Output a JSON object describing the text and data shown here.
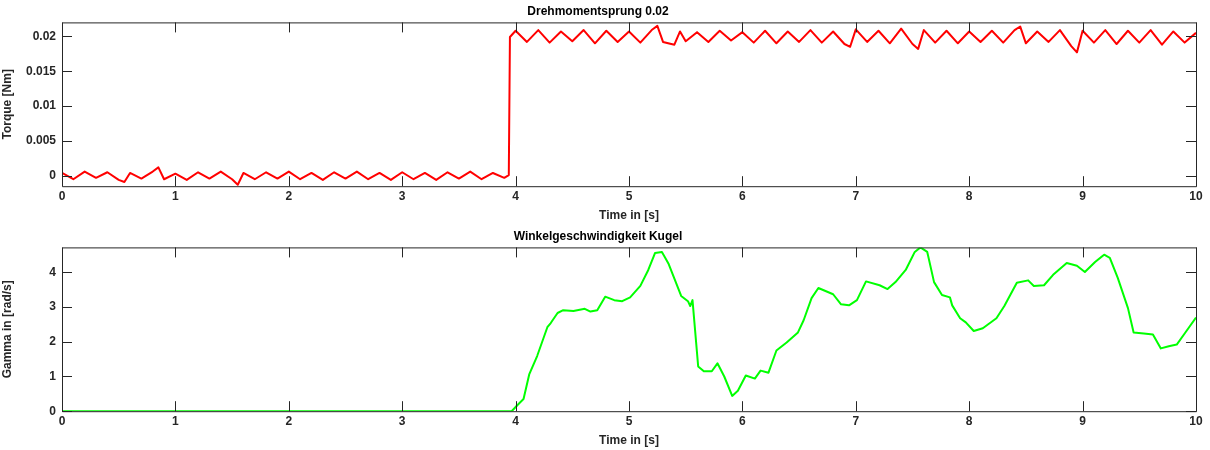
{
  "chart_data": [
    {
      "type": "line",
      "title": "Drehmomentsprung 0.02",
      "xlabel": "Time in [s]",
      "ylabel": "Torque [Nm]",
      "color": "#ff0000",
      "marker": "none",
      "grid": false,
      "x": [
        0,
        0.1,
        0.2,
        0.3,
        0.4,
        0.5,
        0.55,
        0.6,
        0.7,
        0.8,
        0.85,
        0.9,
        1,
        1.1,
        1.2,
        1.3,
        1.4,
        1.5,
        1.55,
        1.6,
        1.7,
        1.8,
        1.9,
        2,
        2.1,
        2.2,
        2.3,
        2.4,
        2.5,
        2.6,
        2.7,
        2.8,
        2.9,
        3,
        3.1,
        3.2,
        3.3,
        3.4,
        3.5,
        3.6,
        3.7,
        3.8,
        3.9,
        3.94,
        3.95,
        4,
        4.1,
        4.2,
        4.3,
        4.4,
        4.5,
        4.6,
        4.7,
        4.8,
        4.9,
        5,
        5.1,
        5.2,
        5.25,
        5.3,
        5.4,
        5.45,
        5.5,
        5.6,
        5.7,
        5.8,
        5.9,
        6,
        6.1,
        6.2,
        6.3,
        6.4,
        6.5,
        6.6,
        6.7,
        6.8,
        6.9,
        6.95,
        7,
        7.1,
        7.2,
        7.3,
        7.4,
        7.5,
        7.55,
        7.6,
        7.7,
        7.8,
        7.9,
        8,
        8.1,
        8.2,
        8.3,
        8.4,
        8.45,
        8.5,
        8.6,
        8.7,
        8.8,
        8.9,
        8.95,
        9,
        9.1,
        9.2,
        9.3,
        9.4,
        9.5,
        9.6,
        9.7,
        9.8,
        9.9,
        10
      ],
      "values": [
        0.0004,
        -0.0005,
        0.0006,
        -0.0003,
        0.0005,
        -0.0006,
        -0.0009,
        0.0004,
        -0.0004,
        0.0006,
        0.0012,
        -0.0005,
        0.0003,
        -0.0006,
        0.0005,
        -0.0004,
        0.0006,
        -0.0005,
        -0.0013,
        0.0004,
        -0.0005,
        0.0005,
        -0.0004,
        0.0006,
        -0.0005,
        0.0004,
        -0.0006,
        0.0005,
        -0.0004,
        0.0006,
        -0.0005,
        0.0004,
        -0.0006,
        0.0005,
        -0.0005,
        0.0004,
        -0.0006,
        0.0005,
        -0.0004,
        0.0006,
        -0.0005,
        0.0004,
        -0.0003,
        0.0001,
        0.0199,
        0.0208,
        0.0192,
        0.0209,
        0.0191,
        0.0207,
        0.0193,
        0.0209,
        0.019,
        0.0208,
        0.0192,
        0.0207,
        0.0191,
        0.0209,
        0.0215,
        0.0192,
        0.0188,
        0.0207,
        0.0193,
        0.0206,
        0.0192,
        0.0208,
        0.0194,
        0.0206,
        0.0191,
        0.0208,
        0.019,
        0.0207,
        0.0192,
        0.0209,
        0.0191,
        0.0207,
        0.0189,
        0.0185,
        0.021,
        0.0192,
        0.0208,
        0.019,
        0.0211,
        0.0189,
        0.0182,
        0.0209,
        0.0191,
        0.0208,
        0.019,
        0.0207,
        0.0192,
        0.0208,
        0.0191,
        0.0209,
        0.0214,
        0.019,
        0.0207,
        0.0192,
        0.0209,
        0.0186,
        0.0177,
        0.0208,
        0.0191,
        0.0209,
        0.0189,
        0.0208,
        0.0191,
        0.0209,
        0.0188,
        0.0207,
        0.0191,
        0.0205
      ],
      "xlim": [
        0,
        10
      ],
      "xticks": [
        0,
        1,
        2,
        3,
        4,
        5,
        6,
        7,
        8,
        9,
        10
      ],
      "ylim": [
        -0.0015,
        0.022
      ],
      "yticks": [
        0,
        0.005,
        0.01,
        0.015,
        0.02
      ]
    },
    {
      "type": "line",
      "title": "Winkelgeschwindigkeit Kugel",
      "xlabel": "Time in [s]",
      "ylabel": "Gamma in [rad/s]",
      "color": "#00ff00",
      "marker": "none",
      "grid": false,
      "x": [
        0,
        1,
        2,
        3,
        3.965,
        4.017,
        4.07,
        4.12,
        4.19,
        4.28,
        4.31,
        4.37,
        4.42,
        4.51,
        4.61,
        4.66,
        4.72,
        4.79,
        4.87,
        4.94,
        5.01,
        5.1,
        5.17,
        5.23,
        5.29,
        5.35,
        5.46,
        5.52,
        5.54,
        5.56,
        5.61,
        5.66,
        5.73,
        5.78,
        5.84,
        5.91,
        5.96,
        6.03,
        6.11,
        6.16,
        6.23,
        6.3,
        6.39,
        6.49,
        6.54,
        6.61,
        6.67,
        6.8,
        6.87,
        6.94,
        7.01,
        7.09,
        7.21,
        7.28,
        7.35,
        7.44,
        7.52,
        7.57,
        7.63,
        7.69,
        7.76,
        7.83,
        7.85,
        7.92,
        7.97,
        8.04,
        8.12,
        8.24,
        8.31,
        8.42,
        8.52,
        8.57,
        8.66,
        8.74,
        8.86,
        8.95,
        9.02,
        9.11,
        9.19,
        9.24,
        9.31,
        9.4,
        9.45,
        9.54,
        9.62,
        9.69,
        9.76,
        9.83,
        9.9,
        10
      ],
      "values": [
        0,
        0,
        0,
        0,
        0,
        0.18,
        0.35,
        1.06,
        1.59,
        2.42,
        2.54,
        2.83,
        2.91,
        2.89,
        2.95,
        2.87,
        2.91,
        3.3,
        3.2,
        3.17,
        3.28,
        3.61,
        4.07,
        4.56,
        4.59,
        4.24,
        3.32,
        3.17,
        3.03,
        3.2,
        1.29,
        1.15,
        1.15,
        1.38,
        1,
        0.44,
        0.59,
        1.03,
        0.94,
        1.17,
        1.11,
        1.75,
        1.98,
        2.27,
        2.62,
        3.26,
        3.55,
        3.37,
        3.08,
        3.05,
        3.2,
        3.74,
        3.63,
        3.52,
        3.72,
        4.07,
        4.59,
        4.72,
        4.59,
        3.72,
        3.35,
        3.28,
        3.05,
        2.68,
        2.56,
        2.31,
        2.39,
        2.68,
        3.03,
        3.7,
        3.77,
        3.61,
        3.63,
        3.93,
        4.27,
        4.19,
        4.01,
        4.3,
        4.51,
        4.42,
        3.84,
        2.97,
        2.27,
        2.24,
        2.21,
        1.81,
        1.87,
        1.92,
        2.24,
        2.7
      ],
      "xlim": [
        0,
        10
      ],
      "xticks": [
        0,
        1,
        2,
        3,
        4,
        5,
        6,
        7,
        8,
        9,
        10
      ],
      "ylim": [
        0,
        4.72
      ],
      "yticks": [
        0,
        1,
        2,
        3,
        4
      ]
    }
  ]
}
